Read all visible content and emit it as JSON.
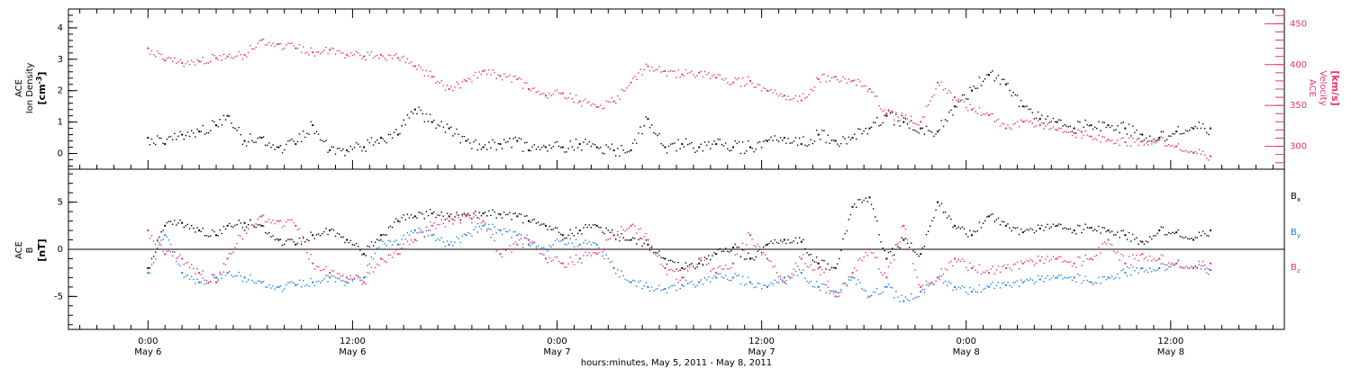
{
  "chart_data": [
    {
      "type": "scatter",
      "panel": "top",
      "left_axis": {
        "label_lines": [
          "ACE",
          "Ion Density"
        ],
        "unit": "[cm",
        "unit_sup": "-3",
        "unit_close": "]",
        "ylim": [
          -0.5,
          4.6
        ],
        "ticks": [
          0,
          1,
          2,
          3,
          4
        ],
        "tick_labels": [
          "0",
          "1",
          "2",
          "3",
          "4"
        ],
        "color": "#000000"
      },
      "right_axis": {
        "label_lines": [
          "ACE",
          "Velocity"
        ],
        "unit": "[km/s]",
        "ylim": [
          272,
          468
        ],
        "ticks": [
          300,
          350,
          400,
          450
        ],
        "tick_labels": [
          "300",
          "350",
          "400",
          "450"
        ],
        "color": "#e8336d"
      },
      "series": [
        {
          "name": "Ion Density",
          "axis": "left",
          "color": "#000000",
          "x": [
            0,
            3,
            6,
            9,
            12,
            14,
            17,
            20,
            23,
            26,
            29,
            32,
            35,
            38,
            41,
            44,
            47,
            50,
            53,
            56,
            59,
            62,
            65,
            67,
            70,
            73,
            76,
            79,
            82,
            85,
            88,
            91,
            94,
            97,
            100,
            103,
            106,
            109,
            112,
            115,
            118,
            121,
            124,
            127,
            130,
            133,
            136,
            139,
            142,
            145,
            148,
            151,
            154,
            157,
            160,
            163,
            166,
            169,
            172,
            175,
            178,
            181,
            184,
            187
          ],
          "y": [
            0.5,
            0.3,
            0.6,
            0.7,
            0.9,
            1.2,
            0.4,
            0.5,
            0.2,
            0.3,
            0.9,
            0.1,
            0.1,
            0.2,
            0.5,
            0.6,
            1.4,
            1.0,
            0.8,
            0.4,
            0.2,
            0.3,
            0.4,
            0.1,
            0.2,
            0.2,
            0.3,
            0.2,
            0.1,
            0.1,
            1.1,
            0.2,
            0.3,
            0.2,
            0.3,
            0.2,
            0.2,
            0.4,
            0.5,
            0.3,
            0.6,
            0.4,
            0.5,
            0.8,
            1.2,
            1.0,
            0.8,
            0.7,
            1.5,
            2.0,
            2.5,
            2.2,
            1.5,
            1.1,
            1.0,
            0.8,
            0.9,
            0.9,
            0.8,
            0.6,
            0.5,
            0.7,
            0.8,
            0.8
          ]
        },
        {
          "name": "Velocity",
          "axis": "right",
          "color": "#e8336d",
          "x": [
            0,
            3,
            6,
            9,
            12,
            14,
            17,
            20,
            23,
            26,
            29,
            32,
            35,
            38,
            41,
            44,
            47,
            50,
            53,
            56,
            59,
            62,
            65,
            67,
            70,
            73,
            76,
            79,
            82,
            85,
            88,
            91,
            94,
            97,
            100,
            103,
            106,
            109,
            112,
            115,
            118,
            121,
            124,
            127,
            130,
            133,
            136,
            139,
            142,
            145,
            148,
            151,
            154,
            157,
            160,
            163,
            166,
            169,
            172,
            175,
            178,
            181,
            184,
            187
          ],
          "y": [
            420,
            405,
            402,
            404,
            408,
            410,
            412,
            430,
            425,
            420,
            415,
            418,
            412,
            410,
            412,
            408,
            398,
            385,
            370,
            380,
            392,
            386,
            382,
            370,
            362,
            365,
            355,
            348,
            355,
            378,
            398,
            392,
            388,
            390,
            384,
            378,
            380,
            368,
            362,
            356,
            382,
            385,
            380,
            370,
            340,
            335,
            330,
            378,
            360,
            345,
            338,
            322,
            330,
            326,
            320,
            316,
            312,
            308,
            305,
            306,
            308,
            300,
            292,
            288
          ]
        }
      ]
    },
    {
      "type": "scatter",
      "panel": "bottom",
      "left_axis": {
        "label_lines": [
          "ACE",
          "B"
        ],
        "unit": "[nT]",
        "ylim": [
          -8.5,
          8.5
        ],
        "ticks": [
          -5,
          0,
          5
        ],
        "tick_labels": [
          "-5",
          "0",
          "5"
        ],
        "zero_line": true
      },
      "series": [
        {
          "name": "B",
          "sub": "x",
          "color": "#000000",
          "x": [
            0,
            3,
            6,
            9,
            12,
            14,
            17,
            20,
            23,
            26,
            29,
            32,
            35,
            38,
            41,
            44,
            47,
            50,
            53,
            56,
            59,
            62,
            65,
            67,
            70,
            73,
            76,
            79,
            82,
            85,
            88,
            91,
            94,
            97,
            100,
            103,
            106,
            109,
            112,
            115,
            118,
            121,
            124,
            127,
            130,
            133,
            136,
            139,
            142,
            145,
            148,
            151,
            154,
            157,
            160,
            163,
            166,
            169,
            172,
            175,
            178,
            181,
            184,
            187
          ],
          "y": [
            -2.0,
            2.5,
            2.8,
            2.0,
            1.5,
            2.5,
            2.8,
            2.5,
            1.0,
            0.5,
            1.5,
            2.0,
            1.0,
            -0.5,
            1.5,
            3.0,
            3.5,
            3.8,
            3.5,
            3.6,
            3.8,
            3.7,
            3.5,
            3.0,
            2.5,
            1.5,
            2.0,
            2.5,
            1.5,
            1.0,
            0.5,
            -1.0,
            -2.0,
            -1.5,
            -0.5,
            0.2,
            -1.0,
            0.5,
            1.0,
            0.8,
            -1.5,
            -2.0,
            4.5,
            5.5,
            -1.0,
            1.0,
            -0.5,
            5.0,
            2.5,
            1.5,
            3.5,
            2.5,
            1.8,
            2.2,
            2.5,
            2.0,
            2.3,
            2.0,
            1.5,
            0.8,
            2.0,
            1.8,
            1.0,
            2.0
          ]
        },
        {
          "name": "B",
          "sub": "y",
          "color": "#1a7fe0",
          "x": [
            0,
            3,
            6,
            9,
            12,
            14,
            17,
            20,
            23,
            26,
            29,
            32,
            35,
            38,
            41,
            44,
            47,
            50,
            53,
            56,
            59,
            62,
            65,
            67,
            70,
            73,
            76,
            79,
            82,
            85,
            88,
            91,
            94,
            97,
            100,
            103,
            106,
            109,
            112,
            115,
            118,
            121,
            124,
            127,
            130,
            133,
            136,
            139,
            142,
            145,
            148,
            151,
            154,
            157,
            160,
            163,
            166,
            169,
            172,
            175,
            178,
            181,
            184,
            187
          ],
          "y": [
            -2.5,
            1.5,
            -2.5,
            -3.5,
            -3.0,
            -2.5,
            -3.0,
            -3.5,
            -4.0,
            -3.8,
            -3.5,
            -3.0,
            -3.5,
            -3.0,
            1.0,
            0.5,
            2.0,
            1.5,
            0.5,
            1.5,
            2.5,
            2.0,
            1.5,
            0.5,
            0.0,
            1.0,
            0.5,
            0.5,
            -2.0,
            -3.5,
            -4.0,
            -4.2,
            -3.8,
            -3.5,
            -3.0,
            -3.0,
            -3.5,
            -4.0,
            -3.0,
            -2.5,
            -4.0,
            -4.5,
            -3.0,
            -5.0,
            -4.0,
            -5.5,
            -4.5,
            -3.0,
            -4.0,
            -4.5,
            -4.0,
            -3.8,
            -3.5,
            -3.2,
            -3.0,
            -3.0,
            -3.5,
            -3.0,
            -2.5,
            -2.0,
            -2.0,
            -1.5,
            -2.0,
            -2.2
          ]
        },
        {
          "name": "B",
          "sub": "z",
          "color": "#e8336d",
          "x": [
            0,
            3,
            6,
            9,
            12,
            14,
            17,
            20,
            23,
            26,
            29,
            32,
            35,
            38,
            41,
            44,
            47,
            50,
            53,
            56,
            59,
            62,
            65,
            67,
            70,
            73,
            76,
            79,
            82,
            85,
            88,
            91,
            94,
            97,
            100,
            103,
            106,
            109,
            112,
            115,
            118,
            121,
            124,
            127,
            130,
            133,
            136,
            139,
            142,
            145,
            148,
            151,
            154,
            157,
            160,
            163,
            166,
            169,
            172,
            175,
            178,
            181,
            184,
            187
          ],
          "y": [
            2.0,
            -0.5,
            -1.0,
            -2.5,
            -3.5,
            -1.0,
            2.0,
            3.5,
            3.0,
            2.5,
            -1.5,
            -2.5,
            -3.0,
            -3.5,
            -1.0,
            -0.5,
            1.0,
            2.5,
            3.0,
            3.5,
            3.0,
            -0.5,
            0.5,
            1.0,
            -1.0,
            -1.5,
            -1.0,
            -0.5,
            1.5,
            2.5,
            1.0,
            -2.0,
            -3.0,
            -1.0,
            -2.5,
            -1.5,
            1.5,
            -1.0,
            -3.5,
            -1.0,
            -2.0,
            -5.0,
            -2.5,
            0.0,
            -3.0,
            2.5,
            -4.0,
            -3.0,
            -1.0,
            -2.0,
            -2.5,
            -2.0,
            -1.5,
            -1.2,
            -1.0,
            -1.5,
            -1.0,
            1.0,
            -1.5,
            -0.5,
            -1.0,
            -1.5,
            -2.0,
            -1.5
          ]
        }
      ]
    },
    {
      "type": "time_axis",
      "xlim": [
        -14,
        200
      ],
      "major_ticks": [
        {
          "x": 0,
          "time": "0:00",
          "date": "May 6"
        },
        {
          "x": 36,
          "time": "12:00",
          "date": "May 6"
        },
        {
          "x": 72,
          "time": "0:00",
          "date": "May 7"
        },
        {
          "x": 108,
          "time": "12:00",
          "date": "May 7"
        },
        {
          "x": 144,
          "time": "0:00",
          "date": "May 8"
        },
        {
          "x": 180,
          "time": "12:00",
          "date": "May 8"
        }
      ],
      "xlabel": "hours:minutes, May  5, 2011 - May  8, 2011"
    }
  ]
}
